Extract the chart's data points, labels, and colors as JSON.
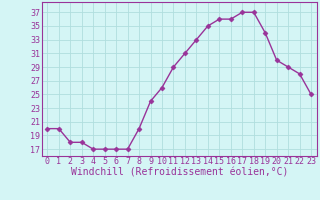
{
  "x": [
    0,
    1,
    2,
    3,
    4,
    5,
    6,
    7,
    8,
    9,
    10,
    11,
    12,
    13,
    14,
    15,
    16,
    17,
    18,
    19,
    20,
    21,
    22,
    23
  ],
  "y": [
    20,
    20,
    18,
    18,
    17,
    17,
    17,
    17,
    20,
    24,
    26,
    29,
    31,
    33,
    35,
    36,
    36,
    37,
    37,
    34,
    30,
    29,
    28,
    25
  ],
  "line_color": "#993399",
  "marker": "D",
  "marker_size": 2.5,
  "bg_color": "#d4f5f5",
  "grid_color": "#b0dede",
  "xlabel": "Windchill (Refroidissement éolien,°C)",
  "xlabel_fontsize": 7,
  "yticks": [
    17,
    19,
    21,
    23,
    25,
    27,
    29,
    31,
    33,
    35,
    37
  ],
  "ylim": [
    16.0,
    38.5
  ],
  "xlim": [
    -0.5,
    23.5
  ],
  "tick_fontsize": 6,
  "linewidth": 1.0,
  "figsize": [
    3.2,
    2.0
  ],
  "dpi": 100
}
